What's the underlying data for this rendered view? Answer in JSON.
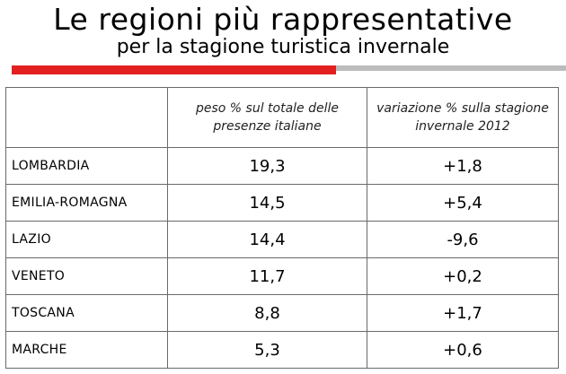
{
  "slide": {
    "title": "Le regioni più rappresentative",
    "subtitle": "per la stagione turistica invernale",
    "accent_color": "#e32020",
    "bar_color": "#bcbcbc"
  },
  "table": {
    "headers": [
      "",
      "peso % sul totale delle presenze italiane",
      "variazione % sulla stagione invernale 2012"
    ],
    "rows": [
      {
        "region": "LOMBARDIA",
        "peso": "19,3",
        "variazione": "+1,8"
      },
      {
        "region": "EMILIA-ROMAGNA",
        "peso": "14,5",
        "variazione": "+5,4"
      },
      {
        "region": "LAZIO",
        "peso": "14,4",
        "variazione": "-9,6"
      },
      {
        "region": "VENETO",
        "peso": "11,7",
        "variazione": "+0,2"
      },
      {
        "region": "TOSCANA",
        "peso": "8,8",
        "variazione": "+1,7"
      },
      {
        "region": "MARCHE",
        "peso": "5,3",
        "variazione": "+0,6"
      }
    ]
  }
}
